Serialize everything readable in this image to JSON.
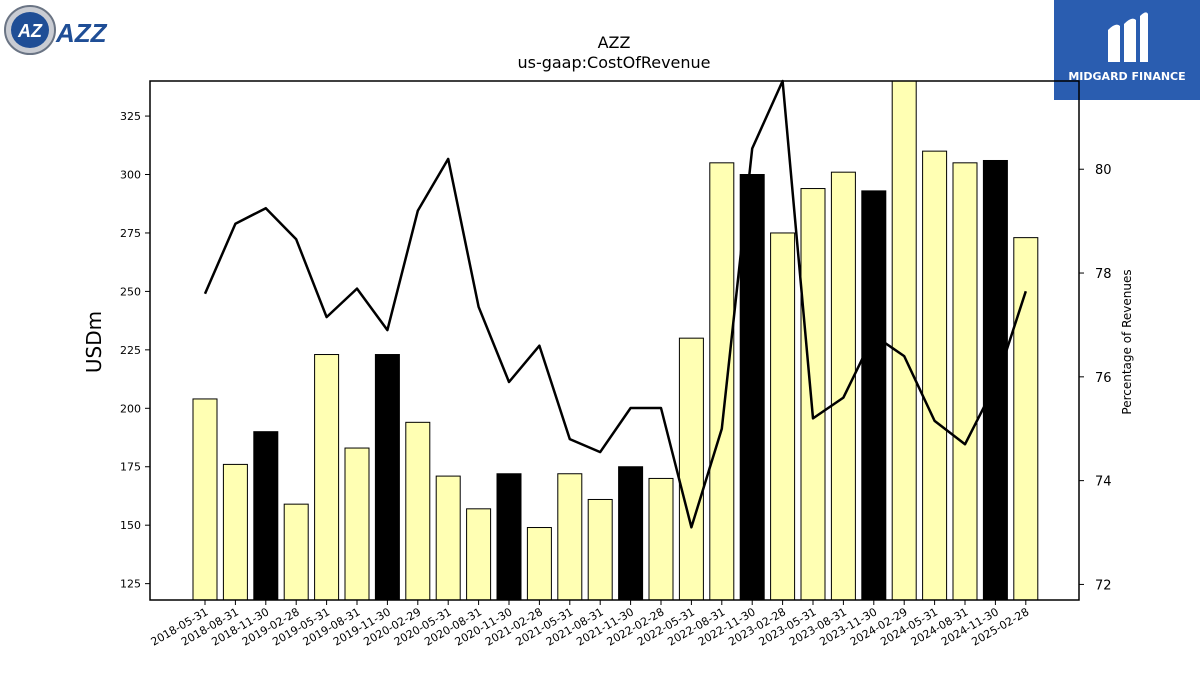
{
  "branding": {
    "left_logo_text": "AZZ",
    "right_logo_text": "MIDGARD FINANCE",
    "colors": {
      "azz_blue": "#1f4e96",
      "midgard_blue": "#2a5db0"
    }
  },
  "chart_data": {
    "type": "bar",
    "title": "AZZ",
    "subtitle": "us-gaap:CostOfRevenue",
    "ylabel": "USDm",
    "y2label": "Percentage of Revenues",
    "ylim": [
      118,
      340
    ],
    "y2lim": [
      71.7,
      81.7
    ],
    "yticks": [
      125,
      150,
      175,
      200,
      225,
      250,
      275,
      300,
      325
    ],
    "y2ticks": [
      72,
      74,
      76,
      78,
      80
    ],
    "grid": false,
    "categories": [
      "2018-05-31",
      "2018-08-31",
      "2018-11-30",
      "2019-02-28",
      "2019-05-31",
      "2019-08-31",
      "2019-11-30",
      "2020-02-29",
      "2020-05-31",
      "2020-08-31",
      "2020-11-30",
      "2021-02-28",
      "2021-05-31",
      "2021-08-31",
      "2021-11-30",
      "2022-02-28",
      "2022-05-31",
      "2022-08-31",
      "2022-11-30",
      "2023-02-28",
      "2023-05-31",
      "2023-08-31",
      "2023-11-30",
      "2024-02-29",
      "2024-05-31",
      "2024-08-31",
      "2024-11-30",
      "2025-02-28"
    ],
    "series": [
      {
        "type": "bar",
        "values": [
          204,
          176,
          190,
          159,
          223,
          183,
          223,
          194,
          171,
          157,
          172,
          149,
          172,
          161,
          175,
          170,
          230,
          305,
          300,
          275,
          294,
          301,
          293,
          345,
          310,
          305,
          306,
          273
        ],
        "highlight": [
          false,
          false,
          true,
          false,
          false,
          false,
          true,
          false,
          false,
          false,
          true,
          false,
          false,
          false,
          true,
          false,
          false,
          false,
          true,
          false,
          false,
          false,
          true,
          false,
          false,
          false,
          true,
          false
        ],
        "color": "#ffffb3",
        "highlight_color": "#000000"
      },
      {
        "type": "line",
        "axis": "secondary",
        "values": [
          77.6,
          78.95,
          79.25,
          78.65,
          77.15,
          77.7,
          76.9,
          79.2,
          80.2,
          77.35,
          75.9,
          76.6,
          74.8,
          74.55,
          75.4,
          75.4,
          73.1,
          75.0,
          80.4,
          81.7,
          75.2,
          75.6,
          76.8,
          76.4,
          75.15,
          74.7,
          75.85,
          77.65
        ],
        "color": "#000000"
      }
    ]
  }
}
